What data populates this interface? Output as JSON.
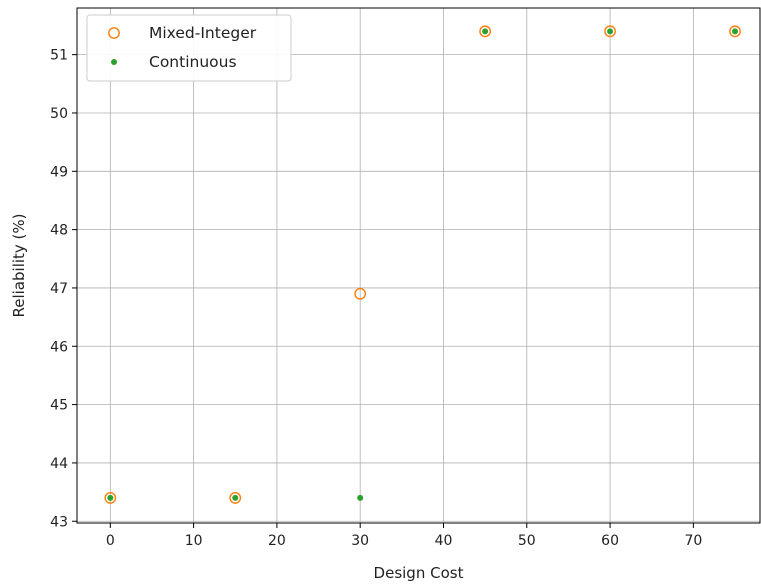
{
  "chart_data": {
    "type": "scatter",
    "title": "",
    "xlabel": "Design Cost",
    "ylabel": "Reliability (%)",
    "xlim": [
      -4,
      78
    ],
    "ylim": [
      42.97,
      51.8
    ],
    "xticks": [
      0,
      10,
      20,
      30,
      40,
      50,
      60,
      70
    ],
    "yticks": [
      43,
      44,
      45,
      46,
      47,
      48,
      49,
      50,
      51
    ],
    "grid": true,
    "legend_position": "top-left",
    "series": [
      {
        "name": "Mixed-Integer",
        "marker": "open-circle",
        "color": "#ff7f0e",
        "x": [
          0,
          15,
          30,
          45,
          60,
          75
        ],
        "y": [
          43.4,
          43.4,
          46.9,
          51.4,
          51.4,
          51.4
        ]
      },
      {
        "name": "Continuous",
        "marker": "small-filled-dot",
        "color": "#2ca02c",
        "x": [
          0,
          15,
          30,
          45,
          60,
          75
        ],
        "y": [
          43.4,
          43.4,
          43.4,
          51.4,
          51.4,
          51.4
        ]
      }
    ]
  }
}
